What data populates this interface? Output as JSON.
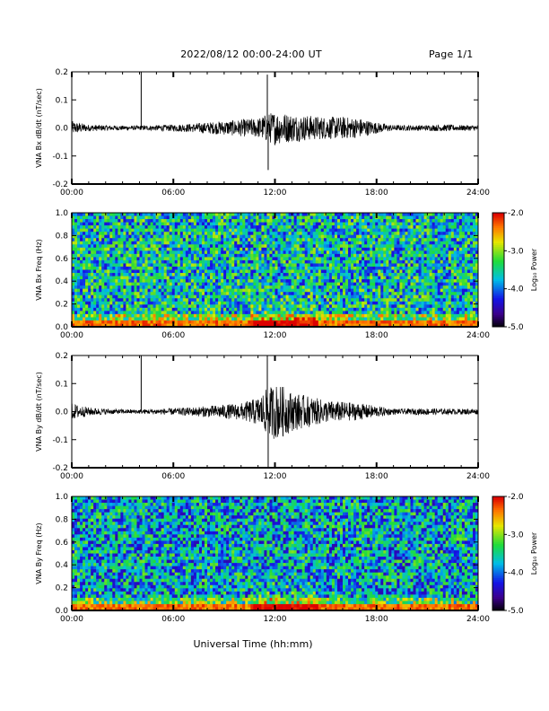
{
  "header": {
    "title": "2022/08/12  00:00-24:00 UT",
    "page": "Page 1/1"
  },
  "chart_data": [
    {
      "type": "line",
      "ylabel": "VNA Bx dB/dt (nT/sec)",
      "xlim": [
        0,
        24
      ],
      "ylim": [
        -0.2,
        0.2
      ],
      "yticks": [
        "0.2",
        "0.1",
        "0.0",
        "-0.1",
        "-0.2"
      ],
      "xtick_labels": [
        "00:00",
        "06:00",
        "12:00",
        "18:00",
        "24:00"
      ],
      "envelope": {
        "x": [
          0,
          0.3,
          1,
          2,
          3,
          4,
          5,
          6,
          7,
          8,
          9,
          10,
          11,
          11.5,
          12,
          12.5,
          13,
          14,
          15,
          16,
          17,
          18,
          19,
          20,
          21,
          22,
          23,
          24
        ],
        "amplitude": [
          0.025,
          0.02,
          0.012,
          0.01,
          0.008,
          0.008,
          0.01,
          0.012,
          0.015,
          0.02,
          0.025,
          0.03,
          0.035,
          0.05,
          0.06,
          0.055,
          0.05,
          0.045,
          0.04,
          0.04,
          0.035,
          0.02,
          0.01,
          0.01,
          0.01,
          0.012,
          0.01,
          0.01
        ]
      },
      "spikes": [
        {
          "x": 4.1,
          "y": 0.2
        },
        {
          "x": 11.55,
          "y": 0.19
        },
        {
          "x": 11.6,
          "y": -0.15
        }
      ]
    },
    {
      "type": "heatmap",
      "ylabel": "VNA Bx Freq (Hz)",
      "xlim": [
        0,
        24
      ],
      "ylim": [
        0,
        1.0
      ],
      "yticks": [
        "1.0",
        "0.8",
        "0.6",
        "0.4",
        "0.2",
        "0.0"
      ],
      "xtick_labels": [
        "00:00",
        "06:00",
        "12:00",
        "18:00",
        "24:00"
      ],
      "colorbar": {
        "label": "Log₁₀ Power",
        "ticks": [
          "-2.0",
          "-3.0",
          "-4.0",
          "-5.0"
        ],
        "range": [
          -5.0,
          -2.0
        ]
      },
      "background_log_power": -3.6,
      "hot_band_hz": [
        0,
        0.05
      ],
      "enhanced_window_hours": [
        10.5,
        14.5
      ]
    },
    {
      "type": "line",
      "ylabel": "VNA By dB/dt (nT/sec)",
      "xlim": [
        0,
        24
      ],
      "ylim": [
        -0.2,
        0.2
      ],
      "yticks": [
        "0.2",
        "0.1",
        "0.0",
        "-0.1",
        "-0.2"
      ],
      "xtick_labels": [
        "00:00",
        "06:00",
        "12:00",
        "18:00",
        "24:00"
      ],
      "envelope": {
        "x": [
          0,
          0.3,
          1,
          2,
          3,
          4,
          5,
          6,
          7,
          8,
          9,
          10,
          11,
          11.5,
          12,
          12.5,
          13,
          14,
          15,
          16,
          17,
          18,
          19,
          20,
          21,
          22,
          23,
          24
        ],
        "amplitude": [
          0.03,
          0.025,
          0.015,
          0.01,
          0.008,
          0.008,
          0.01,
          0.012,
          0.015,
          0.02,
          0.025,
          0.03,
          0.05,
          0.08,
          0.1,
          0.09,
          0.07,
          0.055,
          0.04,
          0.035,
          0.03,
          0.02,
          0.01,
          0.01,
          0.012,
          0.01,
          0.01,
          0.01
        ]
      },
      "spikes": [
        {
          "x": 4.1,
          "y": 0.2
        },
        {
          "x": 11.55,
          "y": 0.2
        },
        {
          "x": 11.6,
          "y": -0.2
        }
      ]
    },
    {
      "type": "heatmap",
      "ylabel": "VNA By Freq (Hz)",
      "xlim": [
        0,
        24
      ],
      "ylim": [
        0,
        1.0
      ],
      "yticks": [
        "1.0",
        "0.8",
        "0.6",
        "0.4",
        "0.2",
        "0.0"
      ],
      "xtick_labels": [
        "00:00",
        "06:00",
        "12:00",
        "18:00",
        "24:00"
      ],
      "colorbar": {
        "label": "Log₁₀ Power",
        "ticks": [
          "-2.0",
          "-3.0",
          "-4.0",
          "-5.0"
        ],
        "range": [
          -5.0,
          -2.0
        ]
      },
      "background_log_power": -3.75,
      "hot_band_hz": [
        0,
        0.05
      ],
      "enhanced_window_hours": [
        10.5,
        14.5
      ]
    }
  ],
  "xlabel": "Universal Time (hh:mm)"
}
